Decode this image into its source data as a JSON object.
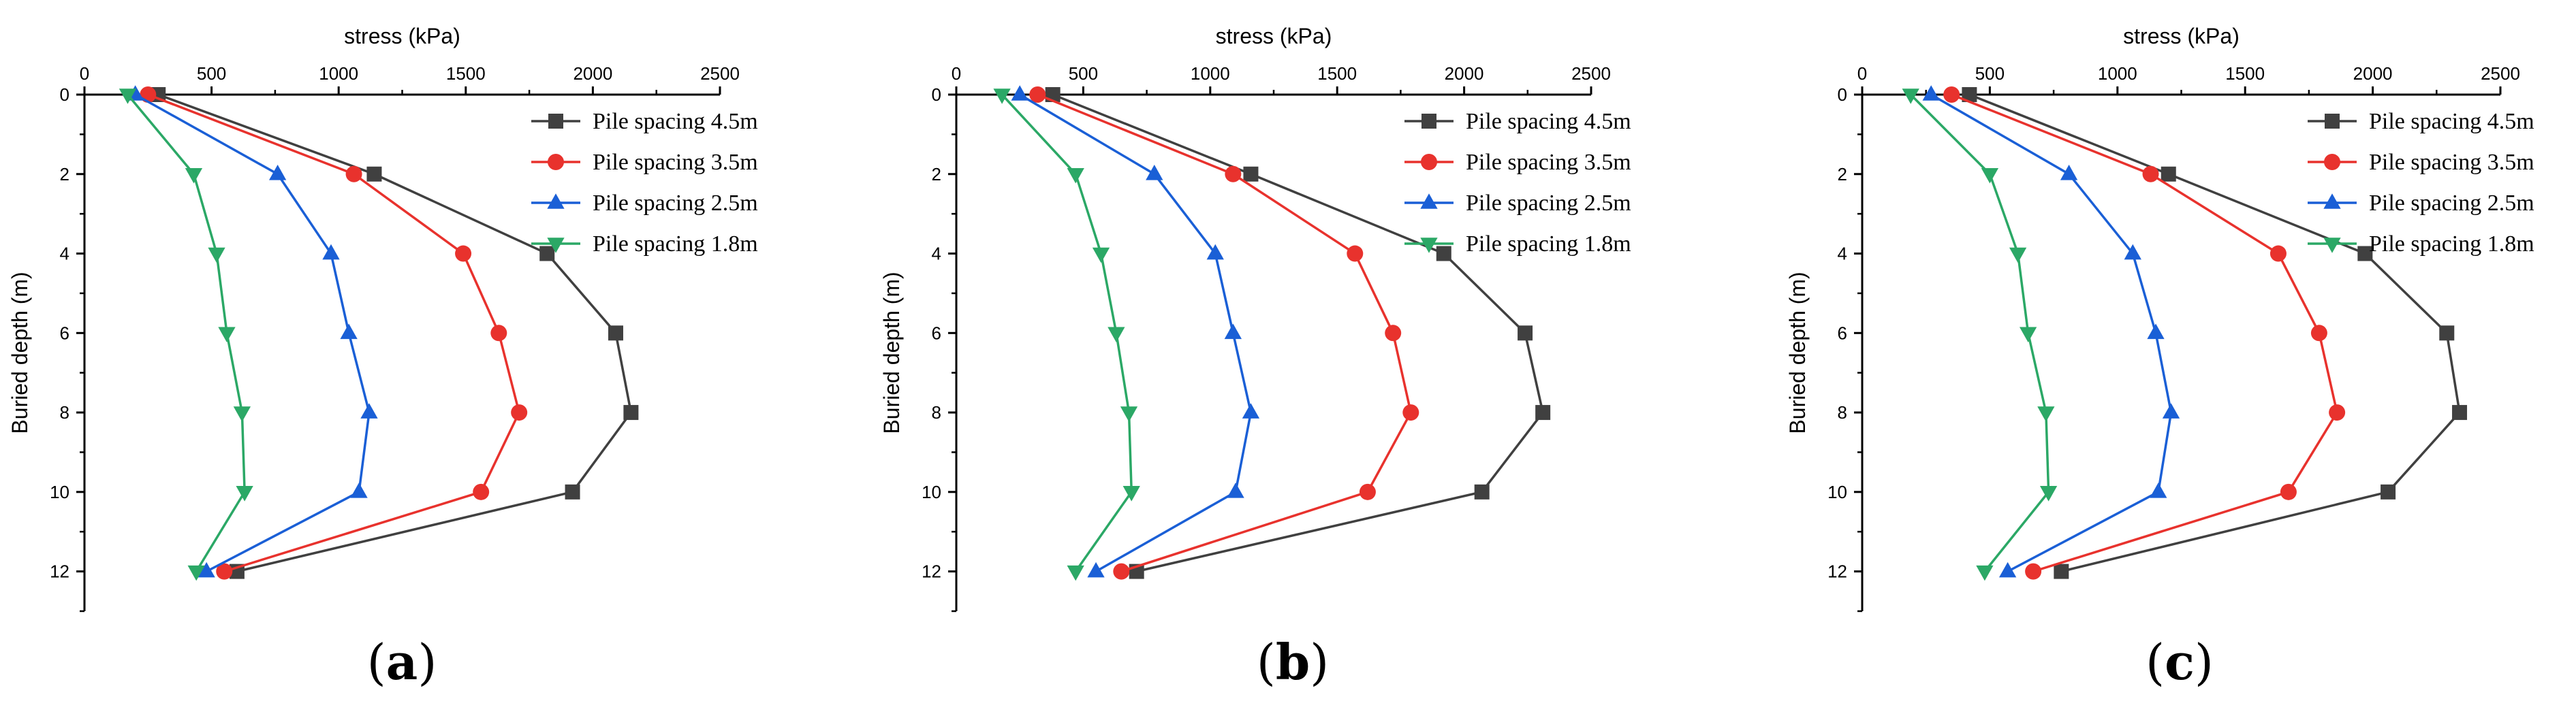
{
  "colors": {
    "s45": "#404040",
    "s35": "#e8322d",
    "s25": "#1a5fd6",
    "s18": "#2ba866",
    "axis": "#000000"
  },
  "chart_data": [
    {
      "type": "line",
      "panel_label": "a",
      "xlabel": "stress (kPa)",
      "ylabel": "Buried depth (m)",
      "xlim": [
        0,
        2500
      ],
      "ylim": [
        0,
        13
      ],
      "xticks": [
        0,
        500,
        1000,
        1500,
        2000,
        2500
      ],
      "yticks": [
        0,
        2,
        4,
        6,
        8,
        10,
        12
      ],
      "x_axis_position": "top",
      "y_inverted": true,
      "legend_position": "top-right",
      "series": [
        {
          "name": "Pile spacing 4.5m",
          "color_key": "s45",
          "marker": "square",
          "points": [
            [
              290,
              0
            ],
            [
              1140,
              2
            ],
            [
              1820,
              4
            ],
            [
              2090,
              6
            ],
            [
              2150,
              8
            ],
            [
              1920,
              10
            ],
            [
              600,
              12
            ]
          ]
        },
        {
          "name": "Pile spacing 3.5m",
          "color_key": "s35",
          "marker": "circle",
          "points": [
            [
              250,
              0
            ],
            [
              1060,
              2
            ],
            [
              1490,
              4
            ],
            [
              1630,
              6
            ],
            [
              1710,
              8
            ],
            [
              1560,
              10
            ],
            [
              550,
              12
            ]
          ]
        },
        {
          "name": "Pile spacing 2.5m",
          "color_key": "s25",
          "marker": "triangle-up",
          "points": [
            [
              200,
              0
            ],
            [
              760,
              2
            ],
            [
              970,
              4
            ],
            [
              1040,
              6
            ],
            [
              1120,
              8
            ],
            [
              1080,
              10
            ],
            [
              480,
              12
            ]
          ]
        },
        {
          "name": "Pile spacing 1.8m",
          "color_key": "s18",
          "marker": "triangle-down",
          "points": [
            [
              170,
              0
            ],
            [
              430,
              2
            ],
            [
              520,
              4
            ],
            [
              560,
              6
            ],
            [
              620,
              8
            ],
            [
              630,
              10
            ],
            [
              440,
              12
            ]
          ]
        }
      ]
    },
    {
      "type": "line",
      "panel_label": "b",
      "xlabel": "stress (kPa)",
      "ylabel": "Buried depth (m)",
      "xlim": [
        0,
        2500
      ],
      "ylim": [
        0,
        13
      ],
      "xticks": [
        0,
        500,
        1000,
        1500,
        2000,
        2500
      ],
      "yticks": [
        0,
        2,
        4,
        6,
        8,
        10,
        12
      ],
      "x_axis_position": "top",
      "y_inverted": true,
      "legend_position": "top-right",
      "series": [
        {
          "name": "Pile spacing 4.5m",
          "color_key": "s45",
          "marker": "square",
          "points": [
            [
              380,
              0
            ],
            [
              1160,
              2
            ],
            [
              1920,
              4
            ],
            [
              2240,
              6
            ],
            [
              2310,
              8
            ],
            [
              2070,
              10
            ],
            [
              710,
              12
            ]
          ]
        },
        {
          "name": "Pile spacing 3.5m",
          "color_key": "s35",
          "marker": "circle",
          "points": [
            [
              320,
              0
            ],
            [
              1090,
              2
            ],
            [
              1570,
              4
            ],
            [
              1720,
              6
            ],
            [
              1790,
              8
            ],
            [
              1620,
              10
            ],
            [
              650,
              12
            ]
          ]
        },
        {
          "name": "Pile spacing 2.5m",
          "color_key": "s25",
          "marker": "triangle-up",
          "points": [
            [
              250,
              0
            ],
            [
              780,
              2
            ],
            [
              1020,
              4
            ],
            [
              1090,
              6
            ],
            [
              1160,
              8
            ],
            [
              1100,
              10
            ],
            [
              550,
              12
            ]
          ]
        },
        {
          "name": "Pile spacing 1.8m",
          "color_key": "s18",
          "marker": "triangle-down",
          "points": [
            [
              180,
              0
            ],
            [
              470,
              2
            ],
            [
              570,
              4
            ],
            [
              630,
              6
            ],
            [
              680,
              8
            ],
            [
              690,
              10
            ],
            [
              470,
              12
            ]
          ]
        }
      ]
    },
    {
      "type": "line",
      "panel_label": "c",
      "xlabel": "stress (kPa)",
      "ylabel": "Buried depth (m)",
      "xlim": [
        0,
        2500
      ],
      "ylim": [
        0,
        13
      ],
      "xticks": [
        0,
        500,
        1000,
        1500,
        2000,
        2500
      ],
      "yticks": [
        0,
        2,
        4,
        6,
        8,
        10,
        12
      ],
      "x_axis_position": "top",
      "y_inverted": true,
      "legend_position": "top-right",
      "series": [
        {
          "name": "Pile spacing 4.5m",
          "color_key": "s45",
          "marker": "square",
          "points": [
            [
              420,
              0
            ],
            [
              1200,
              2
            ],
            [
              1970,
              4
            ],
            [
              2290,
              6
            ],
            [
              2340,
              8
            ],
            [
              2060,
              10
            ],
            [
              780,
              12
            ]
          ]
        },
        {
          "name": "Pile spacing 3.5m",
          "color_key": "s35",
          "marker": "circle",
          "points": [
            [
              350,
              0
            ],
            [
              1130,
              2
            ],
            [
              1630,
              4
            ],
            [
              1790,
              6
            ],
            [
              1860,
              8
            ],
            [
              1670,
              10
            ],
            [
              670,
              12
            ]
          ]
        },
        {
          "name": "Pile spacing 2.5m",
          "color_key": "s25",
          "marker": "triangle-up",
          "points": [
            [
              270,
              0
            ],
            [
              810,
              2
            ],
            [
              1060,
              4
            ],
            [
              1150,
              6
            ],
            [
              1210,
              8
            ],
            [
              1160,
              10
            ],
            [
              570,
              12
            ]
          ]
        },
        {
          "name": "Pile spacing 1.8m",
          "color_key": "s18",
          "marker": "triangle-down",
          "points": [
            [
              190,
              0
            ],
            [
              500,
              2
            ],
            [
              610,
              4
            ],
            [
              650,
              6
            ],
            [
              720,
              8
            ],
            [
              730,
              10
            ],
            [
              480,
              12
            ]
          ]
        }
      ]
    }
  ]
}
